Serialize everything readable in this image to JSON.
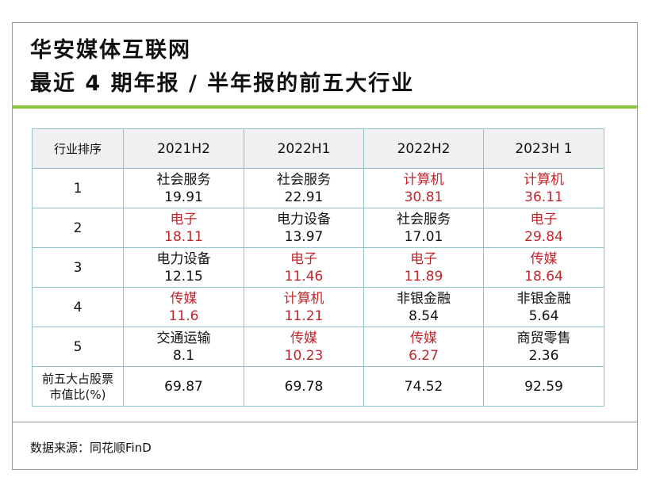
{
  "header": {
    "title": [
      "华安媒体互联网",
      "最近 4 期年报 / 半年报的前五大行业"
    ]
  },
  "table": {
    "columns": [
      "行业排序",
      "2021H2",
      "2022H1",
      "2022H2",
      "2023H 1"
    ],
    "rows": [
      {
        "rank": "1",
        "cells": [
          {
            "name": "社会服务",
            "value": 19.91
          },
          {
            "name": "社会服务",
            "value": 22.91
          },
          {
            "name": "计算机",
            "value": 30.81,
            "color": "#c0272d"
          },
          {
            "name": "计算机",
            "value": 36.11,
            "color": "#c0272d"
          }
        ]
      },
      {
        "rank": "2",
        "cells": [
          {
            "name": "电子",
            "value": 18.11,
            "color": "#c0272d"
          },
          {
            "name": "电力设备",
            "value": 13.97
          },
          {
            "name": "社会服务",
            "value": 17.01
          },
          {
            "name": "电子",
            "value": 29.84,
            "color": "#c0272d"
          }
        ]
      },
      {
        "rank": "3",
        "cells": [
          {
            "name": "电力设备",
            "value": 12.15
          },
          {
            "name": "电子",
            "value": 11.46,
            "color": "#c0272d"
          },
          {
            "name": "电子",
            "value": 11.89,
            "color": "#c0272d"
          },
          {
            "name": "传媒",
            "value": 18.64,
            "color": "#c0272d"
          }
        ]
      },
      {
        "rank": "4",
        "cells": [
          {
            "name": "传媒",
            "value": 11.6,
            "color": "#c0272d"
          },
          {
            "name": "计算机",
            "value": 11.21,
            "color": "#c0272d"
          },
          {
            "name": "非银金融",
            "value": 8.54
          },
          {
            "name": "非银金融",
            "value": 5.64
          }
        ]
      },
      {
        "rank": "5",
        "cells": [
          {
            "name": "交通运输",
            "value": 8.1
          },
          {
            "name": "传媒",
            "value": 10.23,
            "color": "#c0272d"
          },
          {
            "name": "传媒",
            "value": 6.27,
            "color": "#c0272d"
          },
          {
            "name": "商贸零售",
            "value": 2.36
          }
        ]
      }
    ],
    "total": {
      "label": [
        "前五大占股票",
        "市值比(%)"
      ],
      "values": [
        69.87,
        69.78,
        74.52,
        92.59
      ]
    }
  },
  "footer": {
    "source": "数据来源：同花顺FinD"
  }
}
